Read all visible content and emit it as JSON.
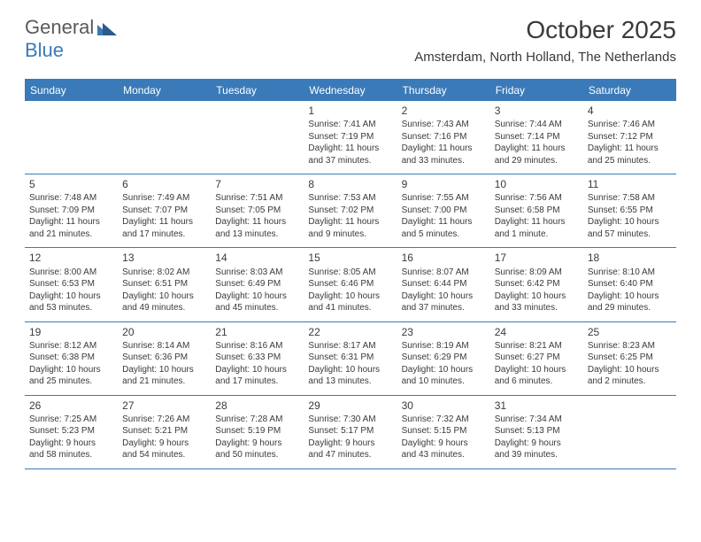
{
  "logo": {
    "part1": "General",
    "part2": "Blue"
  },
  "title": "October 2025",
  "location": "Amsterdam, North Holland, The Netherlands",
  "colors": {
    "accent": "#3a7ab8",
    "text": "#3a3a3a",
    "background": "#ffffff",
    "header_text": "#ffffff"
  },
  "days_of_week": [
    "Sunday",
    "Monday",
    "Tuesday",
    "Wednesday",
    "Thursday",
    "Friday",
    "Saturday"
  ],
  "weeks": [
    [
      {
        "num": "",
        "sunrise": "",
        "sunset": "",
        "daylight1": "",
        "daylight2": ""
      },
      {
        "num": "",
        "sunrise": "",
        "sunset": "",
        "daylight1": "",
        "daylight2": ""
      },
      {
        "num": "",
        "sunrise": "",
        "sunset": "",
        "daylight1": "",
        "daylight2": ""
      },
      {
        "num": "1",
        "sunrise": "Sunrise: 7:41 AM",
        "sunset": "Sunset: 7:19 PM",
        "daylight1": "Daylight: 11 hours",
        "daylight2": "and 37 minutes."
      },
      {
        "num": "2",
        "sunrise": "Sunrise: 7:43 AM",
        "sunset": "Sunset: 7:16 PM",
        "daylight1": "Daylight: 11 hours",
        "daylight2": "and 33 minutes."
      },
      {
        "num": "3",
        "sunrise": "Sunrise: 7:44 AM",
        "sunset": "Sunset: 7:14 PM",
        "daylight1": "Daylight: 11 hours",
        "daylight2": "and 29 minutes."
      },
      {
        "num": "4",
        "sunrise": "Sunrise: 7:46 AM",
        "sunset": "Sunset: 7:12 PM",
        "daylight1": "Daylight: 11 hours",
        "daylight2": "and 25 minutes."
      }
    ],
    [
      {
        "num": "5",
        "sunrise": "Sunrise: 7:48 AM",
        "sunset": "Sunset: 7:09 PM",
        "daylight1": "Daylight: 11 hours",
        "daylight2": "and 21 minutes."
      },
      {
        "num": "6",
        "sunrise": "Sunrise: 7:49 AM",
        "sunset": "Sunset: 7:07 PM",
        "daylight1": "Daylight: 11 hours",
        "daylight2": "and 17 minutes."
      },
      {
        "num": "7",
        "sunrise": "Sunrise: 7:51 AM",
        "sunset": "Sunset: 7:05 PM",
        "daylight1": "Daylight: 11 hours",
        "daylight2": "and 13 minutes."
      },
      {
        "num": "8",
        "sunrise": "Sunrise: 7:53 AM",
        "sunset": "Sunset: 7:02 PM",
        "daylight1": "Daylight: 11 hours",
        "daylight2": "and 9 minutes."
      },
      {
        "num": "9",
        "sunrise": "Sunrise: 7:55 AM",
        "sunset": "Sunset: 7:00 PM",
        "daylight1": "Daylight: 11 hours",
        "daylight2": "and 5 minutes."
      },
      {
        "num": "10",
        "sunrise": "Sunrise: 7:56 AM",
        "sunset": "Sunset: 6:58 PM",
        "daylight1": "Daylight: 11 hours",
        "daylight2": "and 1 minute."
      },
      {
        "num": "11",
        "sunrise": "Sunrise: 7:58 AM",
        "sunset": "Sunset: 6:55 PM",
        "daylight1": "Daylight: 10 hours",
        "daylight2": "and 57 minutes."
      }
    ],
    [
      {
        "num": "12",
        "sunrise": "Sunrise: 8:00 AM",
        "sunset": "Sunset: 6:53 PM",
        "daylight1": "Daylight: 10 hours",
        "daylight2": "and 53 minutes."
      },
      {
        "num": "13",
        "sunrise": "Sunrise: 8:02 AM",
        "sunset": "Sunset: 6:51 PM",
        "daylight1": "Daylight: 10 hours",
        "daylight2": "and 49 minutes."
      },
      {
        "num": "14",
        "sunrise": "Sunrise: 8:03 AM",
        "sunset": "Sunset: 6:49 PM",
        "daylight1": "Daylight: 10 hours",
        "daylight2": "and 45 minutes."
      },
      {
        "num": "15",
        "sunrise": "Sunrise: 8:05 AM",
        "sunset": "Sunset: 6:46 PM",
        "daylight1": "Daylight: 10 hours",
        "daylight2": "and 41 minutes."
      },
      {
        "num": "16",
        "sunrise": "Sunrise: 8:07 AM",
        "sunset": "Sunset: 6:44 PM",
        "daylight1": "Daylight: 10 hours",
        "daylight2": "and 37 minutes."
      },
      {
        "num": "17",
        "sunrise": "Sunrise: 8:09 AM",
        "sunset": "Sunset: 6:42 PM",
        "daylight1": "Daylight: 10 hours",
        "daylight2": "and 33 minutes."
      },
      {
        "num": "18",
        "sunrise": "Sunrise: 8:10 AM",
        "sunset": "Sunset: 6:40 PM",
        "daylight1": "Daylight: 10 hours",
        "daylight2": "and 29 minutes."
      }
    ],
    [
      {
        "num": "19",
        "sunrise": "Sunrise: 8:12 AM",
        "sunset": "Sunset: 6:38 PM",
        "daylight1": "Daylight: 10 hours",
        "daylight2": "and 25 minutes."
      },
      {
        "num": "20",
        "sunrise": "Sunrise: 8:14 AM",
        "sunset": "Sunset: 6:36 PM",
        "daylight1": "Daylight: 10 hours",
        "daylight2": "and 21 minutes."
      },
      {
        "num": "21",
        "sunrise": "Sunrise: 8:16 AM",
        "sunset": "Sunset: 6:33 PM",
        "daylight1": "Daylight: 10 hours",
        "daylight2": "and 17 minutes."
      },
      {
        "num": "22",
        "sunrise": "Sunrise: 8:17 AM",
        "sunset": "Sunset: 6:31 PM",
        "daylight1": "Daylight: 10 hours",
        "daylight2": "and 13 minutes."
      },
      {
        "num": "23",
        "sunrise": "Sunrise: 8:19 AM",
        "sunset": "Sunset: 6:29 PM",
        "daylight1": "Daylight: 10 hours",
        "daylight2": "and 10 minutes."
      },
      {
        "num": "24",
        "sunrise": "Sunrise: 8:21 AM",
        "sunset": "Sunset: 6:27 PM",
        "daylight1": "Daylight: 10 hours",
        "daylight2": "and 6 minutes."
      },
      {
        "num": "25",
        "sunrise": "Sunrise: 8:23 AM",
        "sunset": "Sunset: 6:25 PM",
        "daylight1": "Daylight: 10 hours",
        "daylight2": "and 2 minutes."
      }
    ],
    [
      {
        "num": "26",
        "sunrise": "Sunrise: 7:25 AM",
        "sunset": "Sunset: 5:23 PM",
        "daylight1": "Daylight: 9 hours",
        "daylight2": "and 58 minutes."
      },
      {
        "num": "27",
        "sunrise": "Sunrise: 7:26 AM",
        "sunset": "Sunset: 5:21 PM",
        "daylight1": "Daylight: 9 hours",
        "daylight2": "and 54 minutes."
      },
      {
        "num": "28",
        "sunrise": "Sunrise: 7:28 AM",
        "sunset": "Sunset: 5:19 PM",
        "daylight1": "Daylight: 9 hours",
        "daylight2": "and 50 minutes."
      },
      {
        "num": "29",
        "sunrise": "Sunrise: 7:30 AM",
        "sunset": "Sunset: 5:17 PM",
        "daylight1": "Daylight: 9 hours",
        "daylight2": "and 47 minutes."
      },
      {
        "num": "30",
        "sunrise": "Sunrise: 7:32 AM",
        "sunset": "Sunset: 5:15 PM",
        "daylight1": "Daylight: 9 hours",
        "daylight2": "and 43 minutes."
      },
      {
        "num": "31",
        "sunrise": "Sunrise: 7:34 AM",
        "sunset": "Sunset: 5:13 PM",
        "daylight1": "Daylight: 9 hours",
        "daylight2": "and 39 minutes."
      },
      {
        "num": "",
        "sunrise": "",
        "sunset": "",
        "daylight1": "",
        "daylight2": ""
      }
    ]
  ]
}
